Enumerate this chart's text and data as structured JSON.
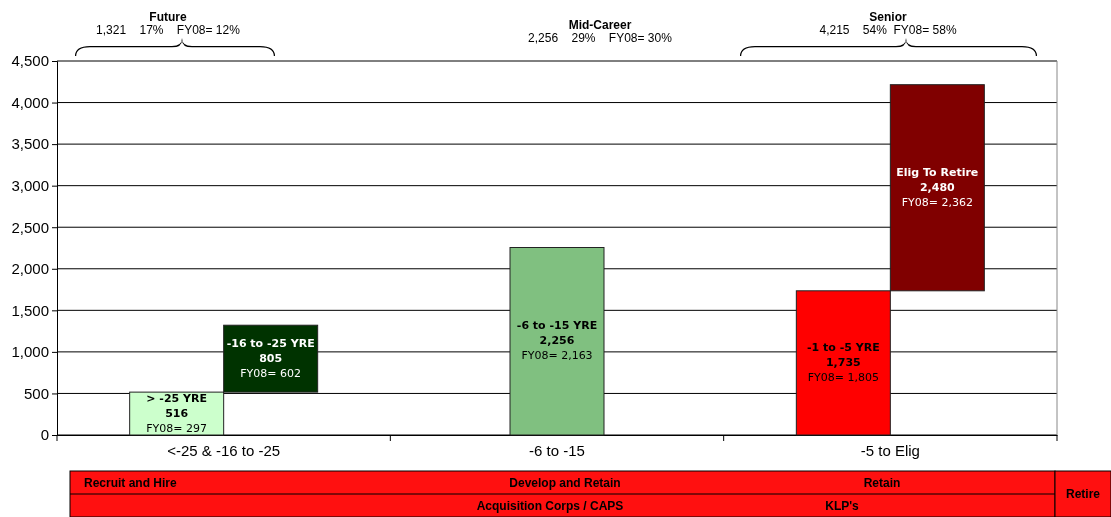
{
  "chart_data": {
    "type": "bar",
    "categories": [
      "<-25 & -16 to -25",
      "-6 to -15",
      "-5 to Elig"
    ],
    "series": [
      {
        "colors": [
          "#ccffcc",
          "#80c080",
          "#ff0000"
        ],
        "values": [
          516,
          2256,
          1735
        ],
        "base": [
          0,
          0,
          0
        ],
        "value_labels": [
          "> -25 YRE\n516\nFY08= 297",
          "-6 to -15 YRE\n2,256\nFY08= 2,163",
          "-1 to -5 YRE\n1,735\nFY08= 1,805"
        ]
      },
      {
        "colors": [
          "#003300",
          null,
          "#800000"
        ],
        "values": [
          805,
          null,
          2480
        ],
        "base": [
          516,
          null,
          1735
        ],
        "value_labels": [
          "-16 to -25 YRE\n805\nFY08= 602",
          null,
          "Elig To Retire\n2,480\nFY08= 2,362"
        ]
      }
    ],
    "ylim": [
      0,
      4500
    ],
    "yticks": [
      {
        "value": 0,
        "label": "0"
      },
      {
        "value": 500,
        "label": "500"
      },
      {
        "value": 1000,
        "label": "1,000"
      },
      {
        "value": 1500,
        "label": "1,500"
      },
      {
        "value": 2000,
        "label": "2,000"
      },
      {
        "value": 2500,
        "label": "2,500"
      },
      {
        "value": 3000,
        "label": "3,000"
      },
      {
        "value": 3500,
        "label": "3,500"
      },
      {
        "value": 4000,
        "label": "4,000"
      },
      {
        "value": 4500,
        "label": "4,500"
      }
    ],
    "grid": "y",
    "annotations": [
      "Future\n1,321    17%    FY08= 12%",
      "Mid-Career\n2,256    29%    FY08= 30%",
      "Senior\n4,215    54%  FY08= 58%",
      "Recruit and Hire",
      "Develop and Retain",
      "Retain",
      "Retire",
      "Acquisition Corps / CAPS",
      "KLP's"
    ]
  }
}
